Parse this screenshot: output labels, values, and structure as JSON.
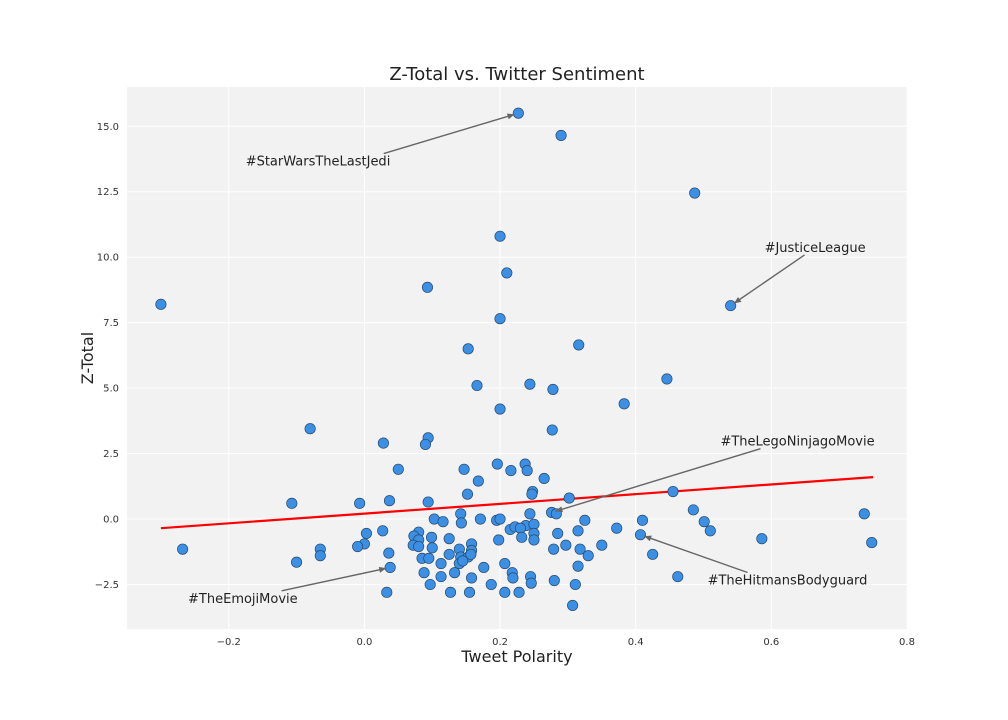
{
  "chart_data": {
    "type": "scatter",
    "title": "Z-Total vs. Twitter Sentiment",
    "xlabel": "Tweet Polarity",
    "ylabel": "Z-Total",
    "xlim": [
      -0.35,
      0.8
    ],
    "ylim": [
      -4.2,
      16.5
    ],
    "xticks": [
      -0.2,
      0.0,
      0.2,
      0.4,
      0.6,
      0.8
    ],
    "xtick_labels": [
      "−0.2",
      "0.0",
      "0.2",
      "0.4",
      "0.6",
      "0.8"
    ],
    "yticks": [
      -2.5,
      0.0,
      2.5,
      5.0,
      7.5,
      10.0,
      12.5,
      15.0
    ],
    "ytick_labels": [
      "−2.5",
      "0.0",
      "2.5",
      "5.0",
      "7.5",
      "10.0",
      "12.5",
      "15.0"
    ],
    "grid": true,
    "colors": {
      "background": "#f2f2f2",
      "grid": "#ffffff",
      "point_fill": "#3b90e6",
      "point_edge": "#2a4a6a",
      "fit_line": "#ff0000",
      "arrow": "#666666"
    },
    "points": [
      [
        0.227,
        15.5
      ],
      [
        0.29,
        14.65
      ],
      [
        0.487,
        12.45
      ],
      [
        0.2,
        10.8
      ],
      [
        0.21,
        9.4
      ],
      [
        -0.3,
        8.2
      ],
      [
        0.093,
        8.85
      ],
      [
        0.54,
        8.15
      ],
      [
        0.2,
        7.65
      ],
      [
        0.316,
        6.65
      ],
      [
        0.153,
        6.5
      ],
      [
        0.446,
        5.35
      ],
      [
        0.166,
        5.1
      ],
      [
        0.244,
        5.15
      ],
      [
        0.278,
        4.95
      ],
      [
        0.383,
        4.4
      ],
      [
        0.2,
        4.2
      ],
      [
        -0.08,
        3.45
      ],
      [
        0.277,
        3.4
      ],
      [
        0.094,
        3.1
      ],
      [
        0.028,
        2.9
      ],
      [
        0.09,
        2.85
      ],
      [
        0.196,
        2.1
      ],
      [
        0.237,
        2.1
      ],
      [
        0.05,
        1.9
      ],
      [
        0.147,
        1.9
      ],
      [
        0.24,
        1.85
      ],
      [
        0.216,
        1.85
      ],
      [
        0.265,
        1.55
      ],
      [
        0.168,
        1.45
      ],
      [
        0.455,
        1.05
      ],
      [
        0.248,
        1.05
      ],
      [
        0.152,
        0.95
      ],
      [
        0.247,
        0.95
      ],
      [
        0.302,
        0.8
      ],
      [
        -0.107,
        0.6
      ],
      [
        0.037,
        0.7
      ],
      [
        0.094,
        0.65
      ],
      [
        -0.007,
        0.6
      ],
      [
        0.485,
        0.35
      ],
      [
        0.276,
        0.25
      ],
      [
        0.283,
        0.2
      ],
      [
        0.142,
        0.2
      ],
      [
        0.244,
        0.2
      ],
      [
        0.737,
        0.2
      ],
      [
        0.103,
        0.0
      ],
      [
        0.116,
        -0.1
      ],
      [
        0.171,
        0.0
      ],
      [
        0.143,
        -0.15
      ],
      [
        0.195,
        -0.05
      ],
      [
        0.2,
        0.0
      ],
      [
        0.325,
        -0.05
      ],
      [
        0.41,
        -0.05
      ],
      [
        0.501,
        -0.1
      ],
      [
        0.238,
        -0.25
      ],
      [
        0.25,
        -0.2
      ],
      [
        0.215,
        -0.4
      ],
      [
        0.222,
        -0.3
      ],
      [
        0.23,
        -0.35
      ],
      [
        0.027,
        -0.45
      ],
      [
        0.003,
        -0.55
      ],
      [
        0.08,
        -0.5
      ],
      [
        0.073,
        -0.65
      ],
      [
        0.315,
        -0.45
      ],
      [
        0.372,
        -0.35
      ],
      [
        0.407,
        -0.6
      ],
      [
        0.51,
        -0.45
      ],
      [
        0.25,
        -0.55
      ],
      [
        0.285,
        -0.55
      ],
      [
        0.232,
        -0.7
      ],
      [
        0.25,
        -0.8
      ],
      [
        0.198,
        -0.8
      ],
      [
        0.158,
        -0.95
      ],
      [
        0.125,
        -0.75
      ],
      [
        0.099,
        -0.7
      ],
      [
        0.08,
        -0.8
      ],
      [
        0.586,
        -0.75
      ],
      [
        0.748,
        -0.9
      ],
      [
        0.0,
        -0.95
      ],
      [
        -0.01,
        -1.05
      ],
      [
        0.072,
        -1.0
      ],
      [
        0.08,
        -1.05
      ],
      [
        0.1,
        -1.1
      ],
      [
        0.14,
        -1.15
      ],
      [
        0.158,
        -1.2
      ],
      [
        0.125,
        -1.35
      ],
      [
        0.142,
        -1.45
      ],
      [
        0.153,
        -1.45
      ],
      [
        0.157,
        -1.35
      ],
      [
        0.036,
        -1.3
      ],
      [
        0.279,
        -1.15
      ],
      [
        0.297,
        -1.0
      ],
      [
        0.318,
        -1.15
      ],
      [
        0.35,
        -1.0
      ],
      [
        0.33,
        -1.4
      ],
      [
        0.425,
        -1.35
      ],
      [
        -0.268,
        -1.15
      ],
      [
        -0.065,
        -1.15
      ],
      [
        -0.065,
        -1.4
      ],
      [
        0.085,
        -1.5
      ],
      [
        0.095,
        -1.5
      ],
      [
        0.113,
        -1.7
      ],
      [
        0.14,
        -1.7
      ],
      [
        0.145,
        -1.6
      ],
      [
        0.207,
        -1.7
      ],
      [
        0.038,
        -1.85
      ],
      [
        0.176,
        -1.85
      ],
      [
        0.315,
        -1.8
      ],
      [
        0.088,
        -2.05
      ],
      [
        0.113,
        -2.2
      ],
      [
        0.133,
        -2.05
      ],
      [
        0.158,
        -2.25
      ],
      [
        0.218,
        -2.05
      ],
      [
        0.219,
        -2.25
      ],
      [
        0.245,
        -2.2
      ],
      [
        0.28,
        -2.35
      ],
      [
        0.462,
        -2.2
      ],
      [
        0.097,
        -2.5
      ],
      [
        0.187,
        -2.5
      ],
      [
        0.246,
        -2.45
      ],
      [
        0.311,
        -2.5
      ],
      [
        -0.1,
        -1.65
      ],
      [
        0.033,
        -2.8
      ],
      [
        0.127,
        -2.8
      ],
      [
        0.155,
        -2.8
      ],
      [
        0.207,
        -2.8
      ],
      [
        0.228,
        -2.8
      ],
      [
        0.307,
        -3.3
      ]
    ],
    "fit_line": {
      "x": [
        -0.3,
        0.75
      ],
      "y": [
        -0.35,
        1.6
      ]
    },
    "annotations": [
      {
        "text": "#StarWarsTheLastJedi",
        "point": [
          0.227,
          15.5
        ],
        "label_at": [
          -0.175,
          13.5
        ]
      },
      {
        "text": "#JusticeLeague",
        "point": [
          0.54,
          8.15
        ],
        "label_at": [
          0.59,
          10.2
        ]
      },
      {
        "text": "#TheLegoNinjagoMovie",
        "point": [
          0.276,
          0.25
        ],
        "label_at": [
          0.525,
          2.8
        ]
      },
      {
        "text": "#TheHitmansBodyguard",
        "point": [
          0.407,
          -0.6
        ],
        "label_at": [
          0.506,
          -2.5
        ]
      },
      {
        "text": "#TheEmojiMovie",
        "point": [
          0.038,
          -1.85
        ],
        "label_at": [
          -0.26,
          -3.2
        ]
      }
    ]
  }
}
